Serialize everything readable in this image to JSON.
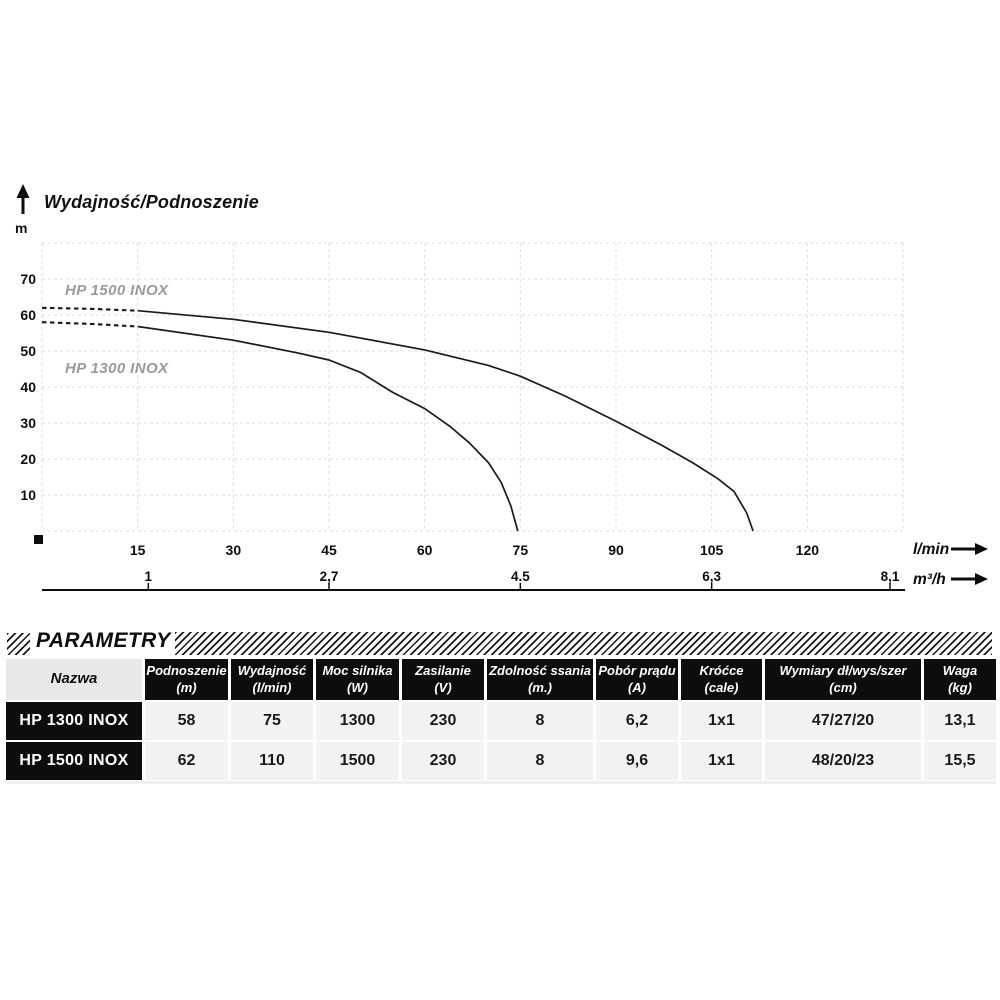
{
  "chart_data": {
    "type": "line",
    "title": "Wydajność/Podnoszenie",
    "ylabel": "m",
    "xlabel_primary": "l/min",
    "xlabel_secondary": "m³/h",
    "xlim": [
      0,
      135
    ],
    "ylim": [
      0,
      80
    ],
    "grid": true,
    "x_ticks": [
      "15",
      "30",
      "45",
      "60",
      "75",
      "90",
      "105",
      "120"
    ],
    "x_tick_values": [
      15,
      30,
      45,
      60,
      75,
      90,
      105,
      120
    ],
    "y_ticks": [
      "10",
      "20",
      "30",
      "40",
      "50",
      "60",
      "70"
    ],
    "y_tick_values": [
      10,
      20,
      30,
      40,
      50,
      60,
      70
    ],
    "secondary_x_ticks": {
      "labels": [
        "1",
        "2,7",
        "4.5",
        "6,3",
        "8,1"
      ],
      "values": [
        1,
        2.7,
        4.5,
        6.3,
        8.1
      ]
    },
    "series": [
      {
        "name": "HP 1500 INOX",
        "dashed_until_x": 15,
        "points": [
          [
            0,
            62
          ],
          [
            8,
            61.7
          ],
          [
            15,
            61.2
          ],
          [
            30,
            58.8
          ],
          [
            45,
            55.2
          ],
          [
            60,
            50.3
          ],
          [
            70,
            46
          ],
          [
            75,
            43
          ],
          [
            82,
            37.5
          ],
          [
            90,
            30.5
          ],
          [
            97,
            24
          ],
          [
            102,
            19
          ],
          [
            106,
            14.5
          ],
          [
            108.5,
            11
          ],
          [
            110.5,
            5
          ],
          [
            111.5,
            0
          ]
        ]
      },
      {
        "name": "HP 1300 INOX",
        "dashed_until_x": 15,
        "points": [
          [
            0,
            58
          ],
          [
            8,
            57.5
          ],
          [
            15,
            56.8
          ],
          [
            30,
            53
          ],
          [
            40,
            49.5
          ],
          [
            45,
            47.5
          ],
          [
            50,
            44
          ],
          [
            55,
            38.5
          ],
          [
            60,
            34
          ],
          [
            64,
            29
          ],
          [
            67,
            24.5
          ],
          [
            70,
            19
          ],
          [
            72,
            13.5
          ],
          [
            73.5,
            7
          ],
          [
            74.6,
            0
          ]
        ]
      }
    ]
  },
  "parameters": {
    "section_title": "PARAMETRY",
    "columns": [
      {
        "label": "Nazwa",
        "unit": ""
      },
      {
        "label": "Podnoszenie",
        "unit": "(m)"
      },
      {
        "label": "Wydajność",
        "unit": "(l/min)"
      },
      {
        "label": "Moc silnika",
        "unit": "(W)"
      },
      {
        "label": "Zasilanie",
        "unit": "(V)"
      },
      {
        "label": "Zdolność ssania",
        "unit": "(m.)"
      },
      {
        "label": "Pobór prądu",
        "unit": "(A)"
      },
      {
        "label": "Króćce",
        "unit": "(cale)"
      },
      {
        "label": "Wymiary dł/wys/szer",
        "unit": "(cm)"
      },
      {
        "label": "Waga",
        "unit": "(kg)"
      }
    ],
    "rows": [
      {
        "name": "HP 1300 INOX",
        "values": [
          "58",
          "75",
          "1300",
          "230",
          "8",
          "6,2",
          "1x1",
          "47/27/20",
          "13,1"
        ]
      },
      {
        "name": "HP 1500 INOX",
        "values": [
          "62",
          "110",
          "1500",
          "230",
          "8",
          "9,6",
          "1x1",
          "48/20/23",
          "15,5"
        ]
      }
    ]
  },
  "colors": {
    "ink": "#0d0d0d",
    "grid": "#dcdcdc",
    "curve": "#1a1a1a",
    "curve_label_gray": "#9a9a9a",
    "cell_gray": "#f2f2f2",
    "nazwa_header_gray": "#e8e8e8"
  }
}
